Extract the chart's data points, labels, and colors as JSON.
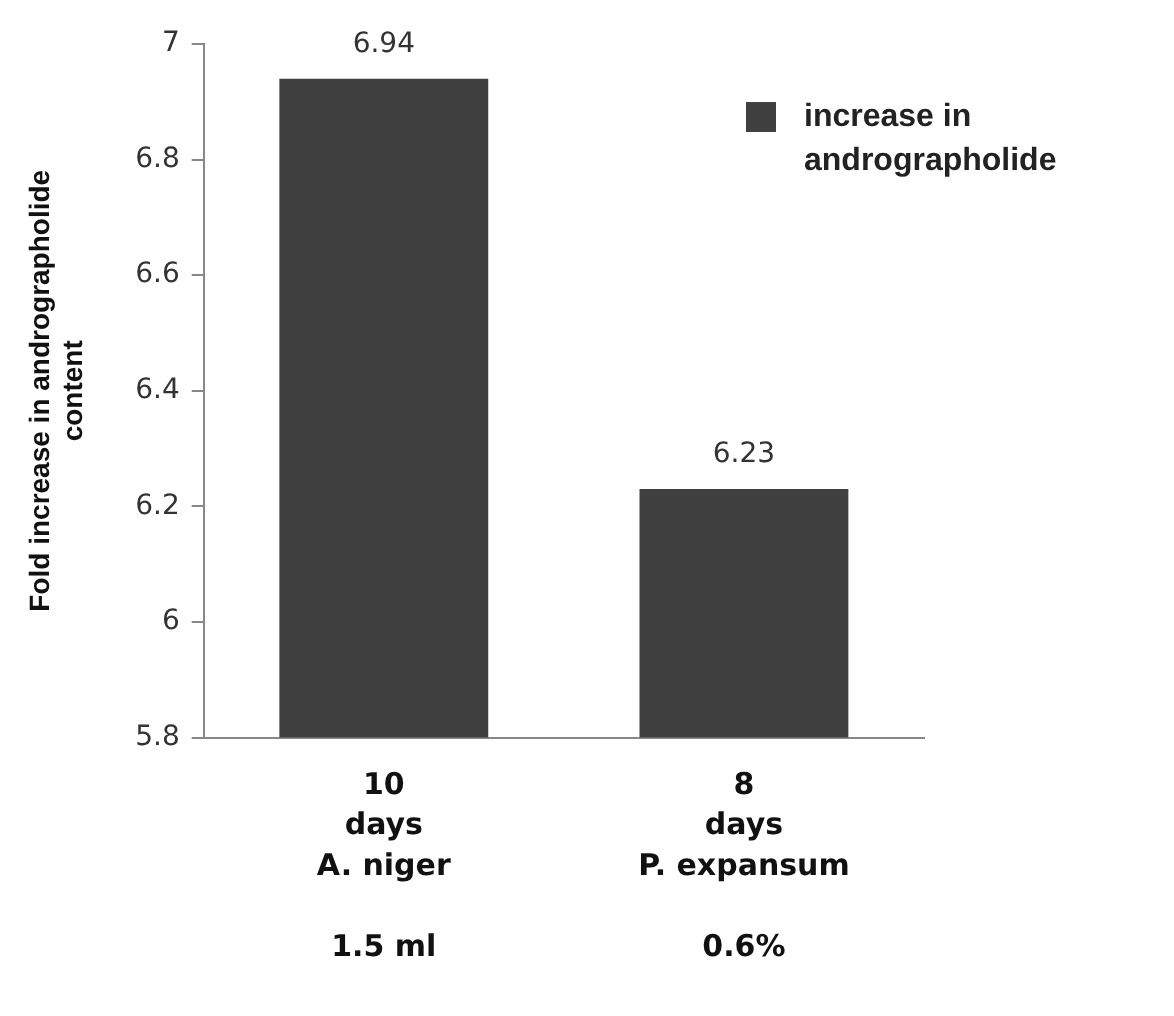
{
  "chart_data": {
    "type": "bar",
    "ylabel": "Fold increase in andrographolide content",
    "categories": [
      "10\ndays\nA. niger\n\n1.5 ml",
      "8\ndays\nP. expansum\n\n0.6%"
    ],
    "series": [
      {
        "name": "increase in andrographolide",
        "color": "#404040",
        "values": [
          6.94,
          6.23
        ]
      }
    ],
    "ylim": [
      5.8,
      7
    ],
    "yticks": [
      5.8,
      6,
      6.2,
      6.4,
      6.6,
      6.8,
      7
    ],
    "data_labels": true,
    "legend": "top right"
  }
}
